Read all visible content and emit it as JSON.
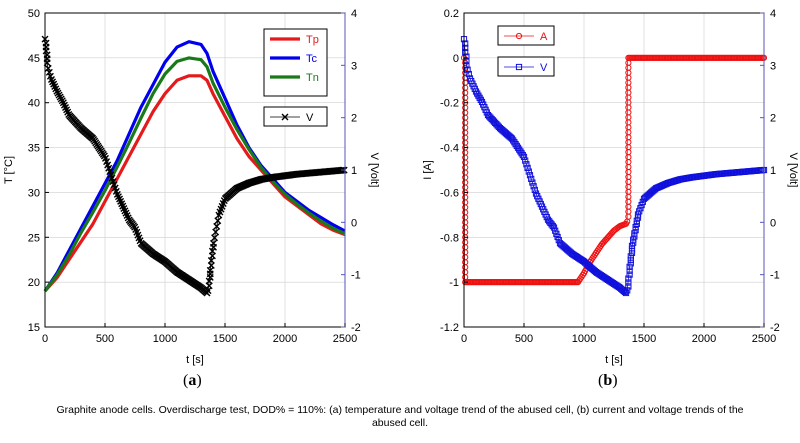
{
  "caption": "Graphite anode cells. Overdischarge test, DOD% = 110%: (a) temperature and voltage trend of the abused cell, (b) current and voltage trends of the abused cell.",
  "colors": {
    "tp": "#e41a1c",
    "tc": "#0000ee",
    "tn": "#1a7a1a",
    "v": "#000000",
    "a": "#ee1111",
    "vb": "#1010dd",
    "rightAxis": "#5555bb"
  },
  "chart_data": [
    {
      "type": "line",
      "panel_label": "a",
      "xlabel": "t [s]",
      "ylabel": "T [°C]",
      "y2label": "V [Volt]",
      "xlim": [
        0,
        2500
      ],
      "ylim": [
        15,
        50
      ],
      "y2lim": [
        -2,
        4
      ],
      "xticks": [
        "0",
        "500",
        "1000",
        "1500",
        "2000",
        "2500"
      ],
      "yticks": [
        "15",
        "20",
        "25",
        "30",
        "35",
        "40",
        "45",
        "50"
      ],
      "y2ticks": [
        "-2",
        "-1",
        "0",
        "1",
        "2",
        "3",
        "4"
      ],
      "grid": true,
      "series": [
        {
          "name": "Tp",
          "axis": "left",
          "color_key": "tp",
          "x": [
            0,
            100,
            200,
            300,
            400,
            500,
            600,
            700,
            800,
            900,
            1000,
            1100,
            1200,
            1300,
            1350,
            1400,
            1500,
            1600,
            1700,
            1800,
            1900,
            2000,
            2100,
            2200,
            2300,
            2400,
            2500
          ],
          "y": [
            19,
            20.5,
            22.5,
            24.5,
            26.5,
            29,
            31.5,
            34,
            36.5,
            39,
            41,
            42.5,
            43,
            43,
            42.5,
            41,
            38.5,
            36,
            34,
            32.5,
            31,
            29.5,
            28.5,
            27.5,
            26.5,
            25.8,
            25.3
          ]
        },
        {
          "name": "Tc",
          "axis": "left",
          "color_key": "tc",
          "x": [
            0,
            100,
            200,
            300,
            400,
            500,
            600,
            700,
            800,
            900,
            1000,
            1100,
            1200,
            1300,
            1350,
            1400,
            1500,
            1600,
            1700,
            1800,
            1900,
            2000,
            2100,
            2200,
            2300,
            2400,
            2500
          ],
          "y": [
            19,
            21,
            23.5,
            26,
            28.5,
            31,
            33.5,
            36.5,
            39.5,
            42,
            44.5,
            46.2,
            46.8,
            46.5,
            45.5,
            43.5,
            40.5,
            37.5,
            35,
            33,
            31.5,
            30,
            29,
            28,
            27.2,
            26.4,
            25.7
          ]
        },
        {
          "name": "Tn",
          "axis": "left",
          "color_key": "tn",
          "x": [
            0,
            100,
            200,
            300,
            400,
            500,
            600,
            700,
            800,
            900,
            1000,
            1100,
            1200,
            1300,
            1350,
            1400,
            1500,
            1600,
            1700,
            1800,
            1900,
            2000,
            2100,
            2200,
            2300,
            2400,
            2500
          ],
          "y": [
            19,
            20.8,
            23,
            25.5,
            27.8,
            30.2,
            32.8,
            35.5,
            38.3,
            41,
            43.2,
            44.6,
            45,
            44.8,
            44,
            42.2,
            39.5,
            37,
            34.8,
            32.8,
            31.2,
            29.8,
            28.7,
            27.7,
            26.8,
            26,
            25.4
          ]
        },
        {
          "name": "V",
          "axis": "right",
          "color_key": "v",
          "x": [
            0,
            20,
            50,
            100,
            150,
            200,
            300,
            400,
            500,
            550,
            600,
            700,
            750,
            800,
            900,
            1000,
            1100,
            1200,
            1300,
            1350,
            1360,
            1380,
            1400,
            1450,
            1500,
            1600,
            1700,
            1800,
            1900,
            2000,
            2100,
            2200,
            2300,
            2400,
            2500
          ],
          "y": [
            3.5,
            3.0,
            2.75,
            2.5,
            2.3,
            2.05,
            1.8,
            1.6,
            1.25,
            0.9,
            0.55,
            0.05,
            -0.1,
            -0.4,
            -0.6,
            -0.75,
            -0.95,
            -1.1,
            -1.25,
            -1.35,
            -1.3,
            -0.85,
            -0.45,
            0.15,
            0.45,
            0.65,
            0.75,
            0.82,
            0.86,
            0.89,
            0.92,
            0.94,
            0.96,
            0.98,
            1.0
          ]
        }
      ],
      "legend": [
        {
          "label": "Tp",
          "color_key": "tp"
        },
        {
          "label": "Tc",
          "color_key": "tc"
        },
        {
          "label": "Tn",
          "color_key": "tn"
        },
        {
          "label": "V",
          "color_key": "v"
        }
      ]
    },
    {
      "type": "line",
      "panel_label": "b",
      "xlabel": "t [s]",
      "ylabel": "I [A]",
      "y2label": "V [Volt]",
      "xlim": [
        0,
        2500
      ],
      "ylim": [
        -1.2,
        0.2
      ],
      "y2lim": [
        -2,
        4
      ],
      "xticks": [
        "0",
        "500",
        "1000",
        "1500",
        "2000",
        "2500"
      ],
      "yticks": [
        "-1.2",
        "-1",
        "-0.8",
        "-0.6",
        "-0.4",
        "-0.2",
        "0",
        "0.2"
      ],
      "y2ticks": [
        "-2",
        "-1",
        "0",
        "1",
        "2",
        "3",
        "4"
      ],
      "grid": true,
      "series": [
        {
          "name": "A",
          "axis": "left",
          "color_key": "a",
          "x": [
            0,
            5,
            10,
            20,
            100,
            300,
            500,
            700,
            900,
            950,
            1000,
            1050,
            1100,
            1150,
            1200,
            1250,
            1300,
            1350,
            1360,
            1362,
            1400,
            1500,
            1700,
            1900,
            2100,
            2300,
            2500
          ],
          "y": [
            0,
            -1,
            -1,
            -1,
            -1,
            -1,
            -1,
            -1,
            -1,
            -1,
            -0.96,
            -0.91,
            -0.87,
            -0.83,
            -0.8,
            -0.77,
            -0.75,
            -0.74,
            -0.73,
            0,
            0,
            0,
            0,
            0,
            0,
            0,
            0
          ]
        },
        {
          "name": "V",
          "axis": "right",
          "color_key": "vb",
          "x": [
            0,
            20,
            50,
            100,
            150,
            200,
            300,
            400,
            500,
            550,
            600,
            700,
            750,
            800,
            900,
            1000,
            1100,
            1200,
            1300,
            1350,
            1360,
            1380,
            1400,
            1450,
            1500,
            1600,
            1700,
            1800,
            1900,
            2000,
            2100,
            2200,
            2300,
            2400,
            2500
          ],
          "y": [
            3.5,
            3.0,
            2.75,
            2.5,
            2.3,
            2.05,
            1.8,
            1.6,
            1.25,
            0.9,
            0.55,
            0.05,
            -0.1,
            -0.4,
            -0.6,
            -0.75,
            -0.95,
            -1.1,
            -1.25,
            -1.35,
            -1.3,
            -0.85,
            -0.45,
            0.15,
            0.45,
            0.65,
            0.75,
            0.82,
            0.86,
            0.89,
            0.92,
            0.94,
            0.96,
            0.98,
            1.0
          ]
        }
      ],
      "legend": [
        {
          "label": "A",
          "color_key": "a"
        },
        {
          "label": "V",
          "color_key": "vb"
        }
      ]
    }
  ]
}
